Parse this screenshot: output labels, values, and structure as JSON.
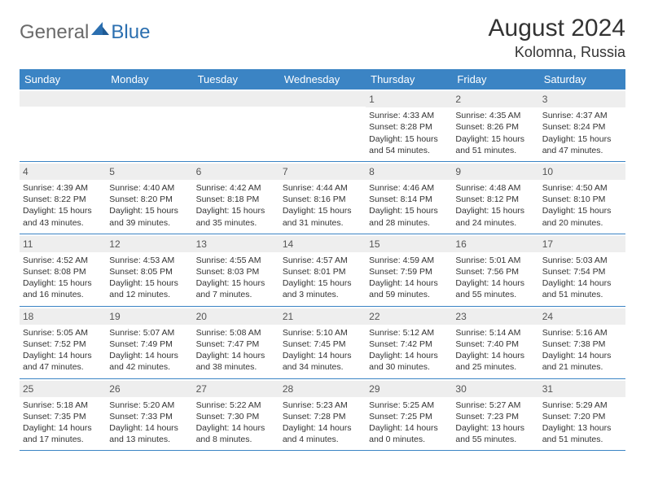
{
  "logo": {
    "text1": "General",
    "text2": "Blue"
  },
  "title": "August 2024",
  "location": "Kolomna, Russia",
  "colors": {
    "header_bg": "#3b84c4",
    "header_text": "#ffffff",
    "daybar_bg": "#eeeeee",
    "text": "#333333",
    "logo_gray": "#6a6a6a",
    "logo_blue": "#2b6fb0"
  },
  "day_names": [
    "Sunday",
    "Monday",
    "Tuesday",
    "Wednesday",
    "Thursday",
    "Friday",
    "Saturday"
  ],
  "weeks": [
    [
      {
        "blank": true
      },
      {
        "blank": true
      },
      {
        "blank": true
      },
      {
        "blank": true
      },
      {
        "n": "1",
        "sunrise": "Sunrise: 4:33 AM",
        "sunset": "Sunset: 8:28 PM",
        "day1": "Daylight: 15 hours",
        "day2": "and 54 minutes."
      },
      {
        "n": "2",
        "sunrise": "Sunrise: 4:35 AM",
        "sunset": "Sunset: 8:26 PM",
        "day1": "Daylight: 15 hours",
        "day2": "and 51 minutes."
      },
      {
        "n": "3",
        "sunrise": "Sunrise: 4:37 AM",
        "sunset": "Sunset: 8:24 PM",
        "day1": "Daylight: 15 hours",
        "day2": "and 47 minutes."
      }
    ],
    [
      {
        "n": "4",
        "sunrise": "Sunrise: 4:39 AM",
        "sunset": "Sunset: 8:22 PM",
        "day1": "Daylight: 15 hours",
        "day2": "and 43 minutes."
      },
      {
        "n": "5",
        "sunrise": "Sunrise: 4:40 AM",
        "sunset": "Sunset: 8:20 PM",
        "day1": "Daylight: 15 hours",
        "day2": "and 39 minutes."
      },
      {
        "n": "6",
        "sunrise": "Sunrise: 4:42 AM",
        "sunset": "Sunset: 8:18 PM",
        "day1": "Daylight: 15 hours",
        "day2": "and 35 minutes."
      },
      {
        "n": "7",
        "sunrise": "Sunrise: 4:44 AM",
        "sunset": "Sunset: 8:16 PM",
        "day1": "Daylight: 15 hours",
        "day2": "and 31 minutes."
      },
      {
        "n": "8",
        "sunrise": "Sunrise: 4:46 AM",
        "sunset": "Sunset: 8:14 PM",
        "day1": "Daylight: 15 hours",
        "day2": "and 28 minutes."
      },
      {
        "n": "9",
        "sunrise": "Sunrise: 4:48 AM",
        "sunset": "Sunset: 8:12 PM",
        "day1": "Daylight: 15 hours",
        "day2": "and 24 minutes."
      },
      {
        "n": "10",
        "sunrise": "Sunrise: 4:50 AM",
        "sunset": "Sunset: 8:10 PM",
        "day1": "Daylight: 15 hours",
        "day2": "and 20 minutes."
      }
    ],
    [
      {
        "n": "11",
        "sunrise": "Sunrise: 4:52 AM",
        "sunset": "Sunset: 8:08 PM",
        "day1": "Daylight: 15 hours",
        "day2": "and 16 minutes."
      },
      {
        "n": "12",
        "sunrise": "Sunrise: 4:53 AM",
        "sunset": "Sunset: 8:05 PM",
        "day1": "Daylight: 15 hours",
        "day2": "and 12 minutes."
      },
      {
        "n": "13",
        "sunrise": "Sunrise: 4:55 AM",
        "sunset": "Sunset: 8:03 PM",
        "day1": "Daylight: 15 hours",
        "day2": "and 7 minutes."
      },
      {
        "n": "14",
        "sunrise": "Sunrise: 4:57 AM",
        "sunset": "Sunset: 8:01 PM",
        "day1": "Daylight: 15 hours",
        "day2": "and 3 minutes."
      },
      {
        "n": "15",
        "sunrise": "Sunrise: 4:59 AM",
        "sunset": "Sunset: 7:59 PM",
        "day1": "Daylight: 14 hours",
        "day2": "and 59 minutes."
      },
      {
        "n": "16",
        "sunrise": "Sunrise: 5:01 AM",
        "sunset": "Sunset: 7:56 PM",
        "day1": "Daylight: 14 hours",
        "day2": "and 55 minutes."
      },
      {
        "n": "17",
        "sunrise": "Sunrise: 5:03 AM",
        "sunset": "Sunset: 7:54 PM",
        "day1": "Daylight: 14 hours",
        "day2": "and 51 minutes."
      }
    ],
    [
      {
        "n": "18",
        "sunrise": "Sunrise: 5:05 AM",
        "sunset": "Sunset: 7:52 PM",
        "day1": "Daylight: 14 hours",
        "day2": "and 47 minutes."
      },
      {
        "n": "19",
        "sunrise": "Sunrise: 5:07 AM",
        "sunset": "Sunset: 7:49 PM",
        "day1": "Daylight: 14 hours",
        "day2": "and 42 minutes."
      },
      {
        "n": "20",
        "sunrise": "Sunrise: 5:08 AM",
        "sunset": "Sunset: 7:47 PM",
        "day1": "Daylight: 14 hours",
        "day2": "and 38 minutes."
      },
      {
        "n": "21",
        "sunrise": "Sunrise: 5:10 AM",
        "sunset": "Sunset: 7:45 PM",
        "day1": "Daylight: 14 hours",
        "day2": "and 34 minutes."
      },
      {
        "n": "22",
        "sunrise": "Sunrise: 5:12 AM",
        "sunset": "Sunset: 7:42 PM",
        "day1": "Daylight: 14 hours",
        "day2": "and 30 minutes."
      },
      {
        "n": "23",
        "sunrise": "Sunrise: 5:14 AM",
        "sunset": "Sunset: 7:40 PM",
        "day1": "Daylight: 14 hours",
        "day2": "and 25 minutes."
      },
      {
        "n": "24",
        "sunrise": "Sunrise: 5:16 AM",
        "sunset": "Sunset: 7:38 PM",
        "day1": "Daylight: 14 hours",
        "day2": "and 21 minutes."
      }
    ],
    [
      {
        "n": "25",
        "sunrise": "Sunrise: 5:18 AM",
        "sunset": "Sunset: 7:35 PM",
        "day1": "Daylight: 14 hours",
        "day2": "and 17 minutes."
      },
      {
        "n": "26",
        "sunrise": "Sunrise: 5:20 AM",
        "sunset": "Sunset: 7:33 PM",
        "day1": "Daylight: 14 hours",
        "day2": "and 13 minutes."
      },
      {
        "n": "27",
        "sunrise": "Sunrise: 5:22 AM",
        "sunset": "Sunset: 7:30 PM",
        "day1": "Daylight: 14 hours",
        "day2": "and 8 minutes."
      },
      {
        "n": "28",
        "sunrise": "Sunrise: 5:23 AM",
        "sunset": "Sunset: 7:28 PM",
        "day1": "Daylight: 14 hours",
        "day2": "and 4 minutes."
      },
      {
        "n": "29",
        "sunrise": "Sunrise: 5:25 AM",
        "sunset": "Sunset: 7:25 PM",
        "day1": "Daylight: 14 hours",
        "day2": "and 0 minutes."
      },
      {
        "n": "30",
        "sunrise": "Sunrise: 5:27 AM",
        "sunset": "Sunset: 7:23 PM",
        "day1": "Daylight: 13 hours",
        "day2": "and 55 minutes."
      },
      {
        "n": "31",
        "sunrise": "Sunrise: 5:29 AM",
        "sunset": "Sunset: 7:20 PM",
        "day1": "Daylight: 13 hours",
        "day2": "and 51 minutes."
      }
    ]
  ]
}
